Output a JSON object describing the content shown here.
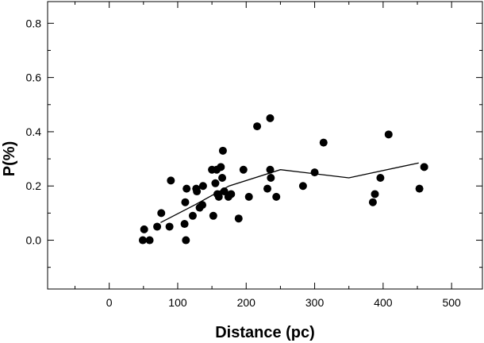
{
  "chart_data": {
    "type": "scatter",
    "title": "",
    "xlabel": "Distance (pc)",
    "ylabel": "P(%)",
    "xlim": [
      -90,
      545
    ],
    "ylim": [
      -0.18,
      0.88
    ],
    "xticks": [
      0,
      100,
      200,
      300,
      400,
      500
    ],
    "yticks": [
      0.0,
      0.2,
      0.4,
      0.6,
      0.8
    ],
    "xtick_labels": [
      "0",
      "100",
      "200",
      "300",
      "400",
      "500"
    ],
    "ytick_labels": [
      "0.0",
      "0.2",
      "0.4",
      "0.6",
      "0.8"
    ],
    "grid": false,
    "legend": "none",
    "marker_color": "#000000",
    "line_color": "#000000",
    "series": [
      {
        "kind": "scatter",
        "points": [
          [
            49,
            0.0
          ],
          [
            51,
            0.04
          ],
          [
            59,
            0.0
          ],
          [
            70,
            0.05
          ],
          [
            76,
            0.1
          ],
          [
            88,
            0.05
          ],
          [
            90,
            0.22
          ],
          [
            110,
            0.06
          ],
          [
            111,
            0.14
          ],
          [
            112,
            0.0
          ],
          [
            113,
            0.19
          ],
          [
            122,
            0.09
          ],
          [
            127,
            0.19
          ],
          [
            128,
            0.18
          ],
          [
            132,
            0.12
          ],
          [
            136,
            0.13
          ],
          [
            137,
            0.2
          ],
          [
            150,
            0.26
          ],
          [
            152,
            0.09
          ],
          [
            155,
            0.21
          ],
          [
            157,
            0.26
          ],
          [
            158,
            0.17
          ],
          [
            160,
            0.16
          ],
          [
            163,
            0.27
          ],
          [
            165,
            0.23
          ],
          [
            166,
            0.33
          ],
          [
            168,
            0.18
          ],
          [
            174,
            0.16
          ],
          [
            178,
            0.17
          ],
          [
            189,
            0.08
          ],
          [
            196,
            0.26
          ],
          [
            204,
            0.16
          ],
          [
            216,
            0.42
          ],
          [
            231,
            0.19
          ],
          [
            235,
            0.45
          ],
          [
            235,
            0.26
          ],
          [
            236,
            0.23
          ],
          [
            244,
            0.16
          ],
          [
            283,
            0.2
          ],
          [
            300,
            0.25
          ],
          [
            313,
            0.36
          ],
          [
            385,
            0.14
          ],
          [
            388,
            0.17
          ],
          [
            396,
            0.23
          ],
          [
            408,
            0.39
          ],
          [
            453,
            0.19
          ],
          [
            460,
            0.27
          ]
        ]
      },
      {
        "kind": "line",
        "points": [
          [
            75,
            0.065
          ],
          [
            125,
            0.13
          ],
          [
            175,
            0.2
          ],
          [
            250,
            0.26
          ],
          [
            350,
            0.23
          ],
          [
            452,
            0.285
          ]
        ]
      }
    ]
  }
}
